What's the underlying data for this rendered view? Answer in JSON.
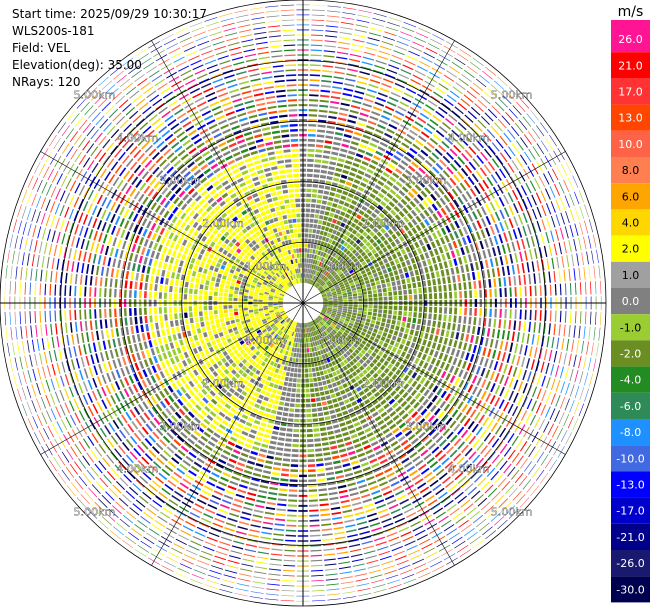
{
  "header": {
    "start_time": "Start time: 2025/09/29 10:30:17",
    "station": "WLS200s-181",
    "field": "Field: VEL",
    "elevation": "Elevation(deg): 35.00",
    "nrays": "NRays: 120"
  },
  "chart_data": {
    "type": "heatmap",
    "projection": "polar PPI",
    "field": "VEL",
    "elevation_deg": 35.0,
    "n_rays": 120,
    "range_ring_labels": [
      "1.00km",
      "2.00km",
      "3.00km",
      "4.00km",
      "5.00km"
    ],
    "range_rings_km": [
      1,
      2,
      3,
      4,
      5
    ],
    "max_range_km": 5.0,
    "grid": true,
    "colorbar": {
      "unit": "m/s",
      "placement": "right",
      "tick_labels": [
        "26.0",
        "21.0",
        "17.0",
        "13.0",
        "10.0",
        "8.0",
        "6.0",
        "4.0",
        "2.0",
        "1.0",
        "0.0",
        "-1.0",
        "-2.0",
        "-4.0",
        "-6.0",
        "-8.0",
        "-10.0",
        "-13.0",
        "-17.0",
        "-21.0",
        "-26.0",
        "-30.0"
      ],
      "colors": [
        "#ff1493",
        "#ff0000",
        "#ff3333",
        "#ff4500",
        "#ff6347",
        "#ff7f50",
        "#ffa500",
        "#ffd700",
        "#ffff00",
        "#a0a0a0",
        "#808080",
        "#9acd32",
        "#6b8e23",
        "#228b22",
        "#2e8b57",
        "#1e90ff",
        "#4169e1",
        "#0000ff",
        "#0000cd",
        "#00008b",
        "#191970",
        "#000050"
      ]
    },
    "pattern_summary": {
      "near_range_km": [
        0.3,
        2.6
      ],
      "west_side_velocity": "positive (~2 to 4 m/s, yellow)",
      "east_side_velocity": "negative (~-1 to -2 m/s, olive green)",
      "outer_range": "noisy / random colors beyond ~3 km"
    }
  }
}
